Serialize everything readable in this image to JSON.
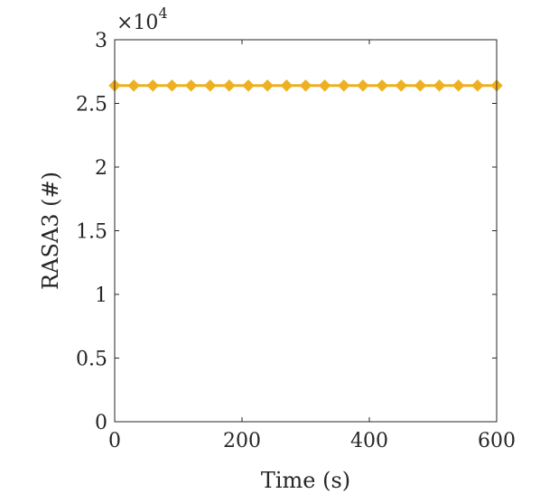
{
  "chart_data": {
    "type": "line",
    "xlabel": "Time (s)",
    "ylabel": "RASA3 (#)",
    "y_multiplier_label": "×10",
    "y_multiplier_exponent": "4",
    "xlim": [
      0,
      600
    ],
    "ylim": [
      0,
      30000
    ],
    "x_ticks": [
      0,
      200,
      400,
      600
    ],
    "x_tick_labels": [
      "0",
      "200",
      "400",
      "600"
    ],
    "y_ticks": [
      0,
      5000,
      10000,
      15000,
      20000,
      25000,
      30000
    ],
    "y_tick_labels": [
      "0",
      "0.5",
      "1",
      "1.5",
      "2",
      "2.5",
      "3"
    ],
    "grid": false,
    "series": [
      {
        "color": "#EDB120",
        "marker": "diamond",
        "x": [
          0,
          30,
          60,
          90,
          120,
          150,
          180,
          210,
          240,
          270,
          300,
          330,
          360,
          390,
          420,
          450,
          480,
          510,
          540,
          570,
          600
        ],
        "y": [
          26400,
          26400,
          26400,
          26400,
          26400,
          26400,
          26400,
          26400,
          26400,
          26400,
          26400,
          26400,
          26400,
          26400,
          26400,
          26400,
          26400,
          26400,
          26400,
          26400,
          26400
        ]
      }
    ]
  }
}
